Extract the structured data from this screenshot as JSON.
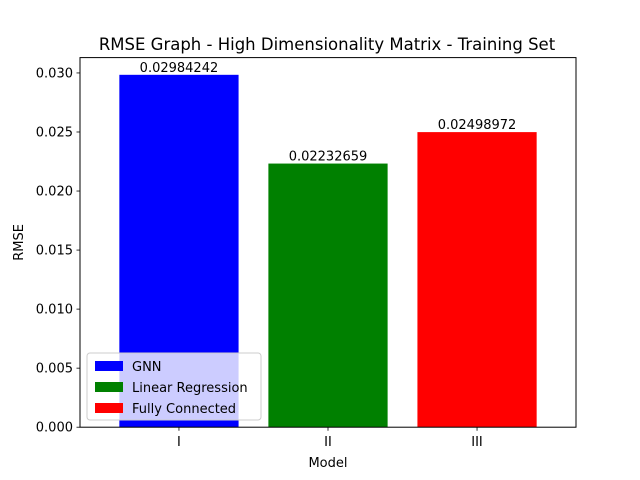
{
  "chart_data": {
    "type": "bar",
    "title": "RMSE Graph - High Dimensionality Matrix - Training Set",
    "xlabel": "Model",
    "ylabel": "RMSE",
    "categories": [
      "I",
      "II",
      "III"
    ],
    "values": [
      0.02984242,
      0.02232659,
      0.02498972
    ],
    "data_labels": [
      "0.02984242",
      "0.02232659",
      "0.02498972"
    ],
    "series": [
      {
        "name": "GNN",
        "color": "#0000ff"
      },
      {
        "name": "Linear Regression",
        "color": "#008000"
      },
      {
        "name": "Fully Connected",
        "color": "#ff0000"
      }
    ],
    "ylim": [
      0,
      0.0313
    ],
    "yticks": [
      0.0,
      0.005,
      0.01,
      0.015,
      0.02,
      0.025,
      0.03
    ],
    "ytick_labels": [
      "0.000",
      "0.005",
      "0.010",
      "0.015",
      "0.020",
      "0.025",
      "0.030"
    ],
    "grid": false,
    "legend_position": "lower-left"
  }
}
